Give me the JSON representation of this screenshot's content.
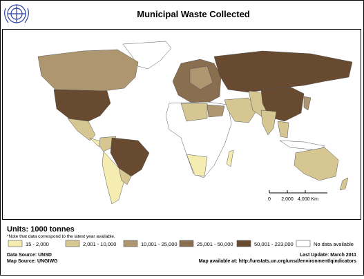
{
  "header": {
    "title": "Municipal Waste Collected"
  },
  "scale_bar": {
    "labels": [
      "0",
      "2,000",
      "4,000 Km"
    ]
  },
  "legend": {
    "title": "Units: 1000 tonnes",
    "note": "*Note that data correspond to the latest year available.",
    "items": [
      {
        "label": "15 - 2,000",
        "color": "#f4ecb0"
      },
      {
        "label": "2,001 - 10,000",
        "color": "#d6c691"
      },
      {
        "label": "10,001 - 25,000",
        "color": "#ae9670"
      },
      {
        "label": "25,001 - 50,000",
        "color": "#8a6e50"
      },
      {
        "label": "50,001 - 223,000",
        "color": "#684a31"
      },
      {
        "label": "No data available",
        "color": "#ffffff"
      }
    ]
  },
  "footer": {
    "data_source": "Data Source: UNSD",
    "map_source": "Map Source: UNGIWG",
    "last_update": "Last Update: March 2011",
    "map_url": "Map available at: http://unstats.un.org/unsd/environment/qindicators"
  }
}
